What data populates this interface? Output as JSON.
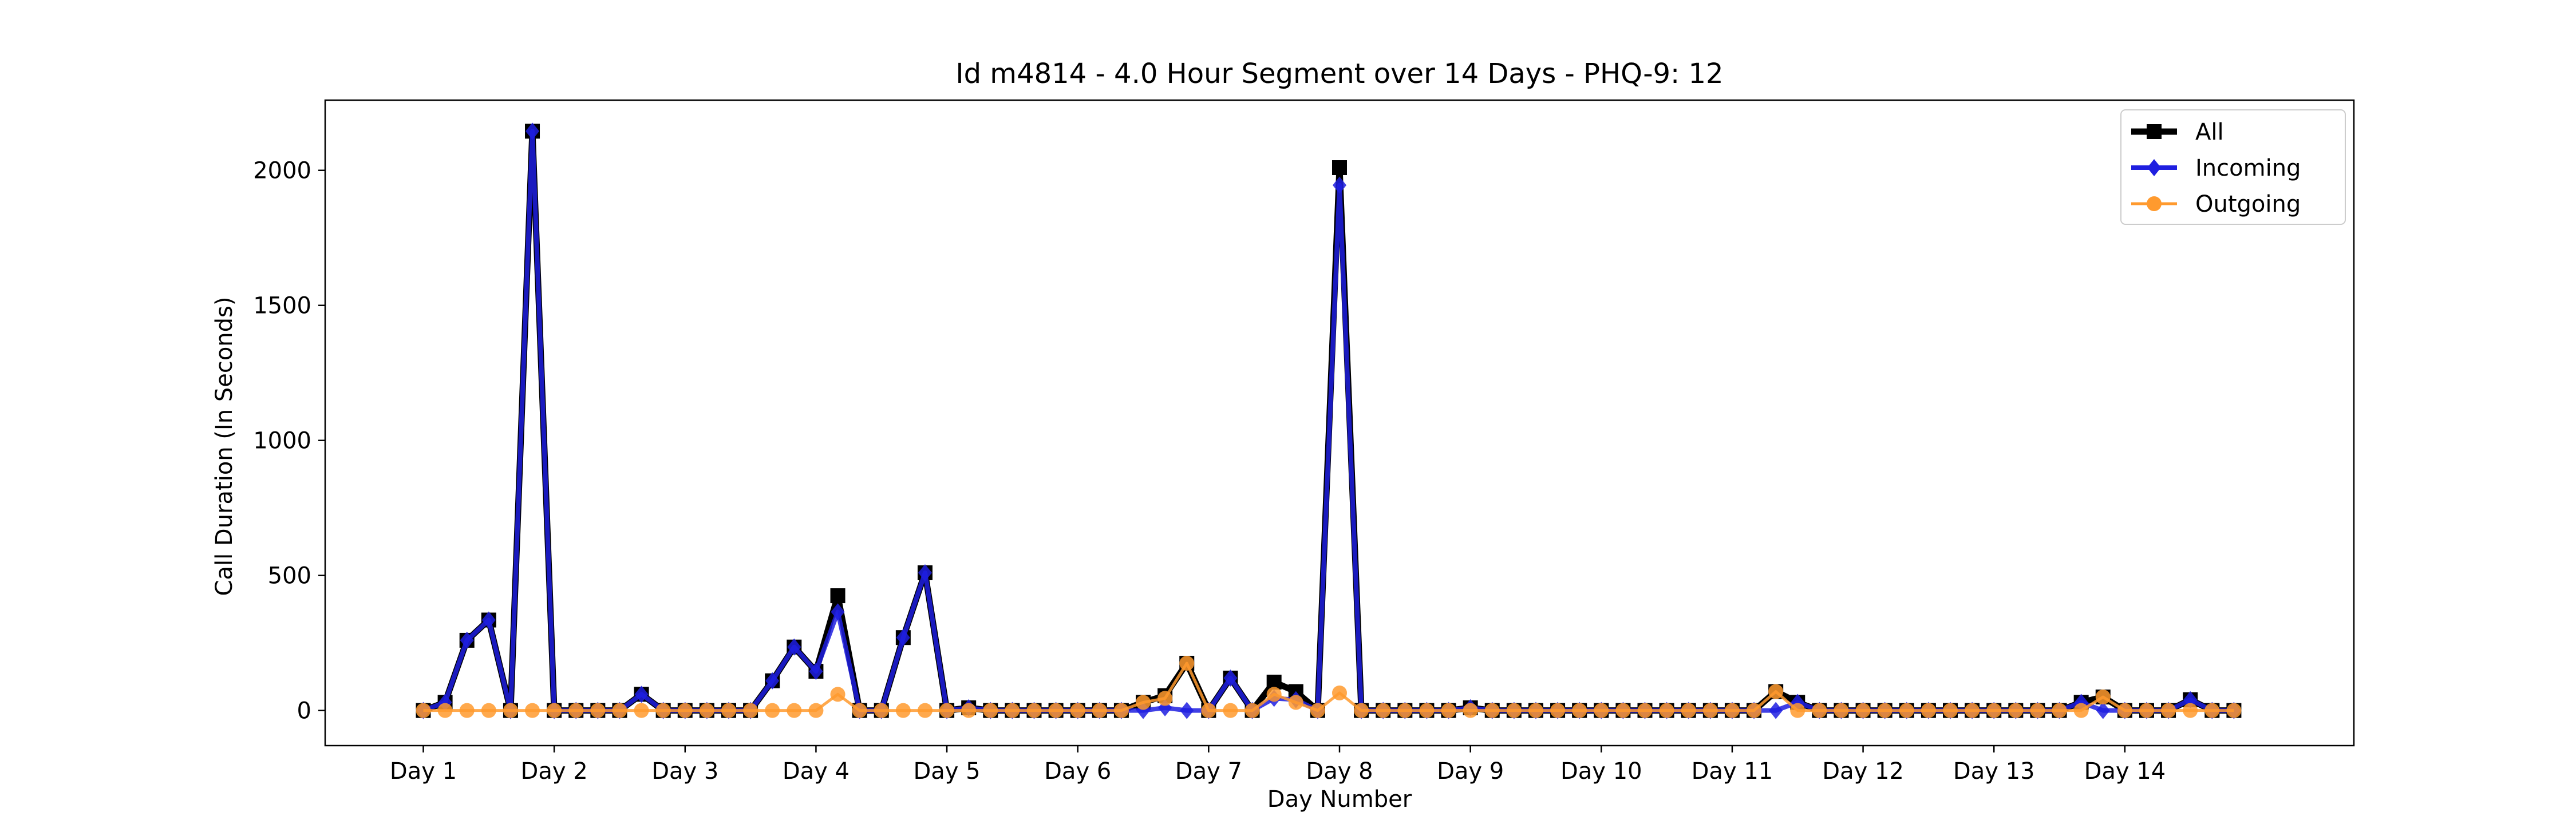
{
  "chart_data": {
    "type": "line",
    "title": "Id m4814 - 4.0 Hour Segment over 14 Days - PHQ-9: 12",
    "xlabel": "Day Number",
    "ylabel": "Call Duration (In Seconds)",
    "ylim": [
      -130,
      2260
    ],
    "xlim": [
      -4.5,
      88.5
    ],
    "yticks": [
      0,
      500,
      1000,
      1500,
      2000
    ],
    "xticks": [
      0,
      6,
      12,
      18,
      24,
      30,
      36,
      42,
      48,
      54,
      60,
      66,
      72,
      78
    ],
    "xtick_labels": [
      "Day 1",
      "Day 2",
      "Day 3",
      "Day 4",
      "Day 5",
      "Day 6",
      "Day 7",
      "Day 8",
      "Day 9",
      "Day 10",
      "Day 11",
      "Day 12",
      "Day 13",
      "Day 14"
    ],
    "legend_position": "top-right",
    "grid": false,
    "x": [
      0,
      1,
      2,
      3,
      4,
      5,
      6,
      7,
      8,
      9,
      10,
      11,
      12,
      13,
      14,
      15,
      16,
      17,
      18,
      19,
      20,
      21,
      22,
      23,
      24,
      25,
      26,
      27,
      28,
      29,
      30,
      31,
      32,
      33,
      34,
      35,
      36,
      37,
      38,
      39,
      40,
      41,
      42,
      43,
      44,
      45,
      46,
      47,
      48,
      49,
      50,
      51,
      52,
      53,
      54,
      55,
      56,
      57,
      58,
      59,
      60,
      61,
      62,
      63,
      64,
      65,
      66,
      67,
      68,
      69,
      70,
      71,
      72,
      73,
      74,
      75,
      76,
      77,
      78,
      79,
      80,
      81,
      82,
      83
    ],
    "series": [
      {
        "name": "All",
        "color": "#000000",
        "marker": "square",
        "values": [
          0,
          30,
          260,
          335,
          0,
          2145,
          0,
          0,
          0,
          0,
          60,
          0,
          0,
          0,
          0,
          0,
          110,
          235,
          145,
          425,
          0,
          0,
          270,
          510,
          0,
          10,
          0,
          0,
          0,
          0,
          0,
          0,
          0,
          30,
          55,
          175,
          0,
          120,
          0,
          105,
          70,
          0,
          2010,
          0,
          0,
          0,
          0,
          0,
          10,
          0,
          0,
          0,
          0,
          0,
          0,
          0,
          0,
          0,
          0,
          0,
          0,
          0,
          70,
          30,
          0,
          0,
          0,
          0,
          0,
          0,
          0,
          0,
          0,
          0,
          0,
          0,
          30,
          50,
          0,
          0,
          0,
          40,
          0,
          0
        ]
      },
      {
        "name": "Incoming",
        "color": "#1f1fe0",
        "marker": "diamond",
        "values": [
          0,
          30,
          260,
          335,
          0,
          2145,
          0,
          0,
          0,
          0,
          60,
          0,
          0,
          0,
          0,
          0,
          110,
          235,
          145,
          365,
          0,
          0,
          270,
          510,
          0,
          10,
          0,
          0,
          0,
          0,
          0,
          0,
          0,
          0,
          10,
          0,
          0,
          120,
          0,
          45,
          40,
          0,
          1945,
          0,
          0,
          0,
          0,
          0,
          10,
          0,
          0,
          0,
          0,
          0,
          0,
          0,
          0,
          0,
          0,
          0,
          0,
          0,
          0,
          30,
          0,
          0,
          0,
          0,
          0,
          0,
          0,
          0,
          0,
          0,
          0,
          0,
          30,
          0,
          0,
          0,
          0,
          40,
          0,
          0
        ]
      },
      {
        "name": "Outgoing",
        "color": "#ff9a2e",
        "marker": "circle",
        "values": [
          0,
          0,
          0,
          0,
          0,
          0,
          0,
          0,
          0,
          0,
          0,
          0,
          0,
          0,
          0,
          0,
          0,
          0,
          0,
          60,
          0,
          0,
          0,
          0,
          0,
          0,
          0,
          0,
          0,
          0,
          0,
          0,
          0,
          30,
          45,
          175,
          0,
          0,
          0,
          60,
          30,
          0,
          65,
          0,
          0,
          0,
          0,
          0,
          0,
          0,
          0,
          0,
          0,
          0,
          0,
          0,
          0,
          0,
          0,
          0,
          0,
          0,
          70,
          0,
          0,
          0,
          0,
          0,
          0,
          0,
          0,
          0,
          0,
          0,
          0,
          0,
          0,
          50,
          0,
          0,
          0,
          0,
          0,
          0
        ]
      }
    ]
  }
}
